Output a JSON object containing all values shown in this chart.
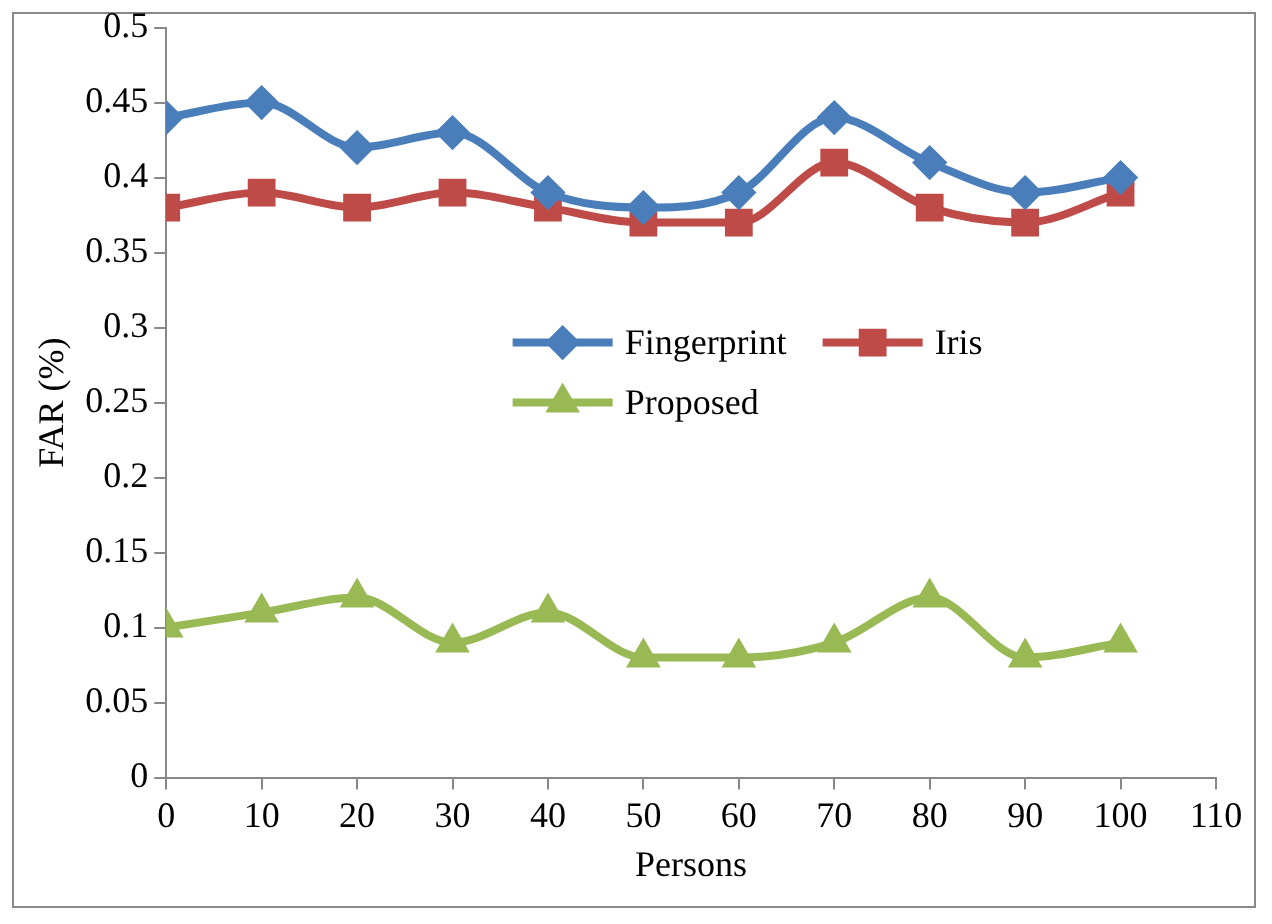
{
  "chart_data": {
    "type": "line",
    "xlabel": "Persons",
    "ylabel": "FAR (%)",
    "x": [
      0,
      10,
      20,
      30,
      40,
      50,
      60,
      70,
      80,
      90,
      100
    ],
    "xlim": [
      0,
      110
    ],
    "xticks": [
      0,
      10,
      20,
      30,
      40,
      50,
      60,
      70,
      80,
      90,
      100,
      110
    ],
    "ylim": [
      0,
      0.5
    ],
    "yticks": [
      0,
      0.05,
      0.1,
      0.15,
      0.2,
      0.25,
      0.3,
      0.35,
      0.4,
      0.45,
      0.5
    ],
    "grid": false,
    "legend": "center",
    "line_style": "solid",
    "series": [
      {
        "name": "Fingerprint",
        "color": "#4a7ebb",
        "marker": "diamond",
        "values": [
          0.44,
          0.45,
          0.42,
          0.43,
          0.39,
          0.38,
          0.39,
          0.44,
          0.41,
          0.39,
          0.4
        ]
      },
      {
        "name": "Iris",
        "color": "#be4b48",
        "marker": "square",
        "values": [
          0.38,
          0.39,
          0.38,
          0.39,
          0.38,
          0.37,
          0.37,
          0.41,
          0.38,
          0.37,
          0.39
        ]
      },
      {
        "name": "Proposed",
        "color": "#98b954",
        "marker": "triangle",
        "values": [
          0.1,
          0.11,
          0.12,
          0.09,
          0.11,
          0.08,
          0.08,
          0.09,
          0.12,
          0.08,
          0.09
        ]
      }
    ]
  }
}
